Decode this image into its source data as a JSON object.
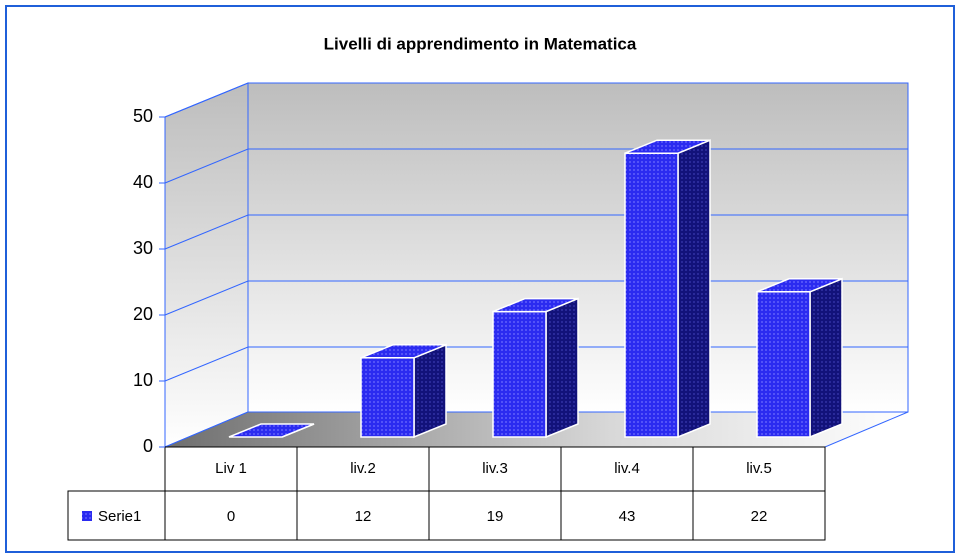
{
  "chart_data": {
    "type": "bar",
    "title": "Livelli di apprendimento in Matematica",
    "categories": [
      "Liv 1",
      "liv.2",
      "liv.3",
      "liv.4",
      "liv.5"
    ],
    "series": [
      {
        "name": "Serie1",
        "color": "#2b2bf0",
        "values": [
          0,
          12,
          19,
          43,
          22
        ]
      }
    ],
    "ylim": [
      0,
      50
    ],
    "yticks": [
      0,
      10,
      20,
      30,
      40,
      50
    ],
    "grid": true
  }
}
